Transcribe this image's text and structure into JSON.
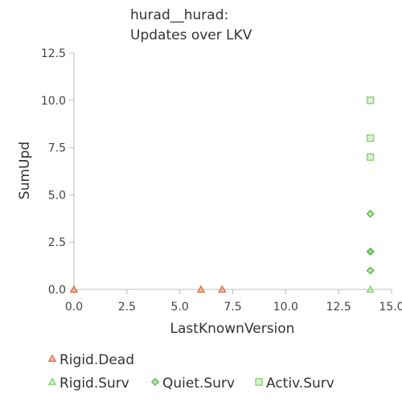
{
  "chart_data": {
    "type": "scatter",
    "title": [
      "hurad__hurad:",
      "Updates over LKV"
    ],
    "xlabel": "LastKnownVersion",
    "ylabel": "SumUpd",
    "xlim": [
      0,
      15
    ],
    "ylim": [
      0,
      12.5
    ],
    "xticks": [
      "0.0",
      "2.5",
      "5.0",
      "7.5",
      "10.0",
      "12.5",
      "15.0"
    ],
    "yticks": [
      "0.0",
      "2.5",
      "5.0",
      "7.5",
      "10.0",
      "12.5"
    ],
    "legend_position": "bottom",
    "series": [
      {
        "name": "Rigid.Dead",
        "marker": "triangle",
        "color": "#e8734a",
        "points": [
          [
            0,
            0
          ],
          [
            6,
            0
          ],
          [
            7,
            0
          ]
        ]
      },
      {
        "name": "Rigid.Surv",
        "marker": "triangle",
        "color": "#8ed67a",
        "points": [
          [
            14,
            0
          ]
        ]
      },
      {
        "name": "Quiet.Surv",
        "marker": "diamond",
        "color": "#5cb84a",
        "points": [
          [
            14,
            1
          ],
          [
            14,
            2
          ],
          [
            14,
            2
          ],
          [
            14,
            4
          ]
        ]
      },
      {
        "name": "Activ.Surv",
        "marker": "square",
        "color": "#8ed67a",
        "points": [
          [
            14,
            7
          ],
          [
            14,
            8
          ],
          [
            14,
            10
          ]
        ]
      }
    ]
  }
}
